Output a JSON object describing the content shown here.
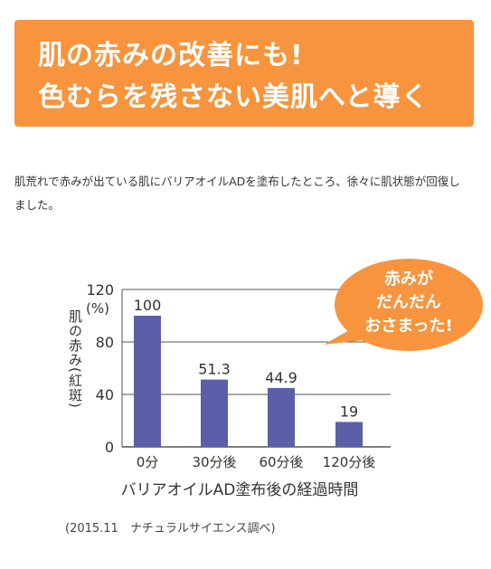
{
  "banner": {
    "line1": "肌の赤みの改善にも!",
    "line2": "色むらを残さない美肌へと導く",
    "color": "#f7943d"
  },
  "body_text": "肌荒れで赤みが出ている肌にバリアオイルADを塗布したところ、徐々に肌状態が回復しました。",
  "chart_data": {
    "type": "bar",
    "categories": [
      "0分",
      "30分後",
      "60分後",
      "120分後"
    ],
    "values": [
      100,
      51.3,
      44.9,
      19
    ],
    "value_labels": [
      "100",
      "51.3",
      "44.9",
      "19"
    ],
    "ylim": [
      0,
      120
    ],
    "yticks": [
      0,
      40,
      80,
      120
    ],
    "ytick_labels": [
      "0",
      "40",
      "80",
      "120"
    ],
    "yunit": "(%)",
    "ylabel": "肌の赤み(紅斑)",
    "xlabel": "バリアオイルAD塗布後の経過時間",
    "grid": true,
    "bar_color": "#5b5fa7",
    "bubble": {
      "lines": [
        "赤みが",
        "だんだん",
        "おさまった!"
      ],
      "color": "#f7943d"
    }
  },
  "caption": "(2015.11　ナチュラルサイエンス調べ)"
}
